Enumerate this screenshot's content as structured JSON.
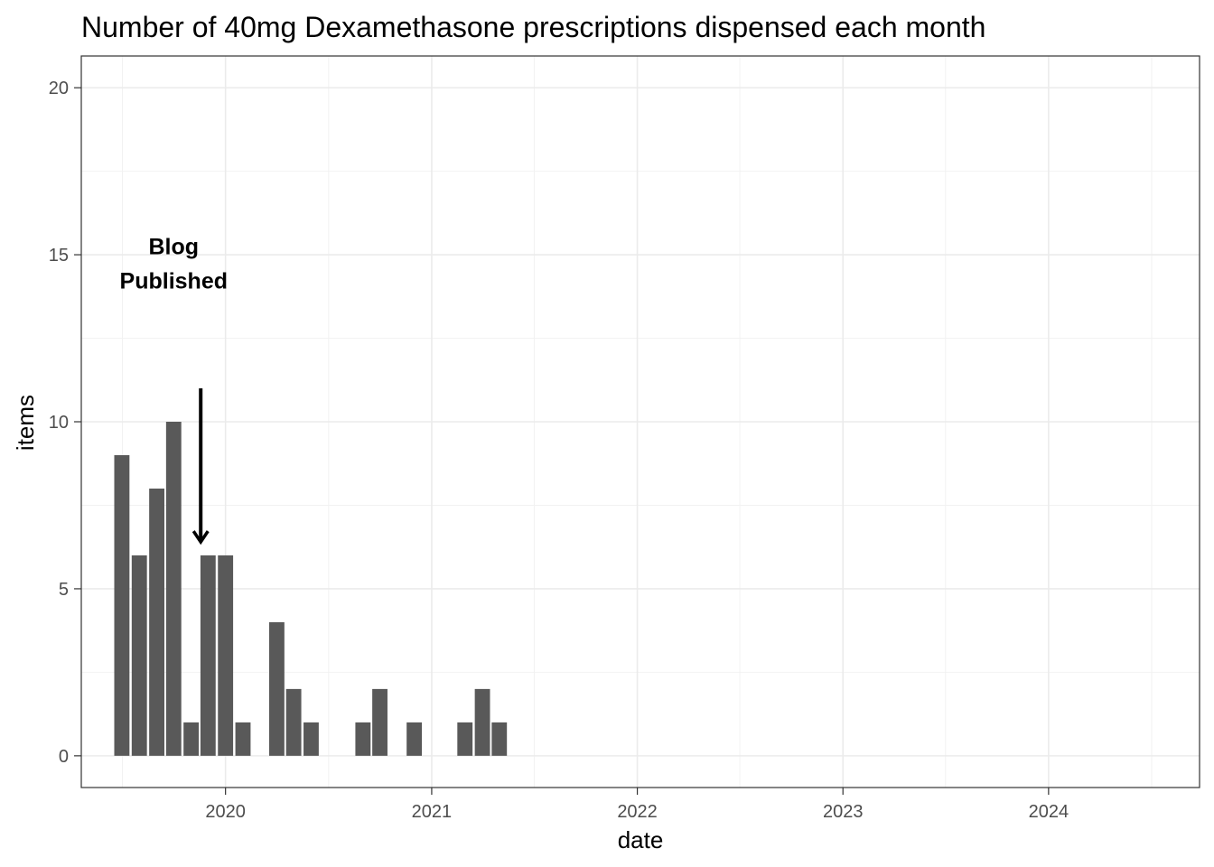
{
  "chart_data": {
    "type": "bar",
    "title": "Number of 40mg Dexamethasone prescriptions dispensed each month",
    "xlabel": "date",
    "ylabel": "items",
    "x_type": "date",
    "xlim": [
      "2019-04-20",
      "2024-09-25"
    ],
    "ylim": [
      -0.95,
      20.95
    ],
    "x_ticks": [
      "2020",
      "2021",
      "2022",
      "2023",
      "2024"
    ],
    "y_ticks": [
      "0",
      "5",
      "10",
      "15",
      "20"
    ],
    "grid": true,
    "bar_color": "#595959",
    "categories": [
      "2019-07",
      "2019-08",
      "2019-09",
      "2019-10",
      "2019-11",
      "2019-12",
      "2020-01",
      "2020-02",
      "2020-03",
      "2020-04",
      "2020-05",
      "2020-06",
      "2020-07",
      "2020-08",
      "2020-09",
      "2020-10",
      "2020-11",
      "2020-12",
      "2021-01",
      "2021-02",
      "2021-03",
      "2021-04",
      "2021-05",
      "2021-06"
    ],
    "values": [
      9,
      6,
      8,
      10,
      1,
      6,
      6,
      1,
      0,
      4,
      2,
      1,
      0,
      0,
      1,
      2,
      0,
      1,
      0,
      0,
      1,
      2,
      1,
      0
    ],
    "annotations": [
      {
        "lines": [
          "Blog",
          "Published"
        ],
        "x": "2019-10-01",
        "y": 14.75
      }
    ],
    "arrow": {
      "x": "2019-11-18",
      "y_from": 11.0,
      "y_to": 6.4
    }
  }
}
